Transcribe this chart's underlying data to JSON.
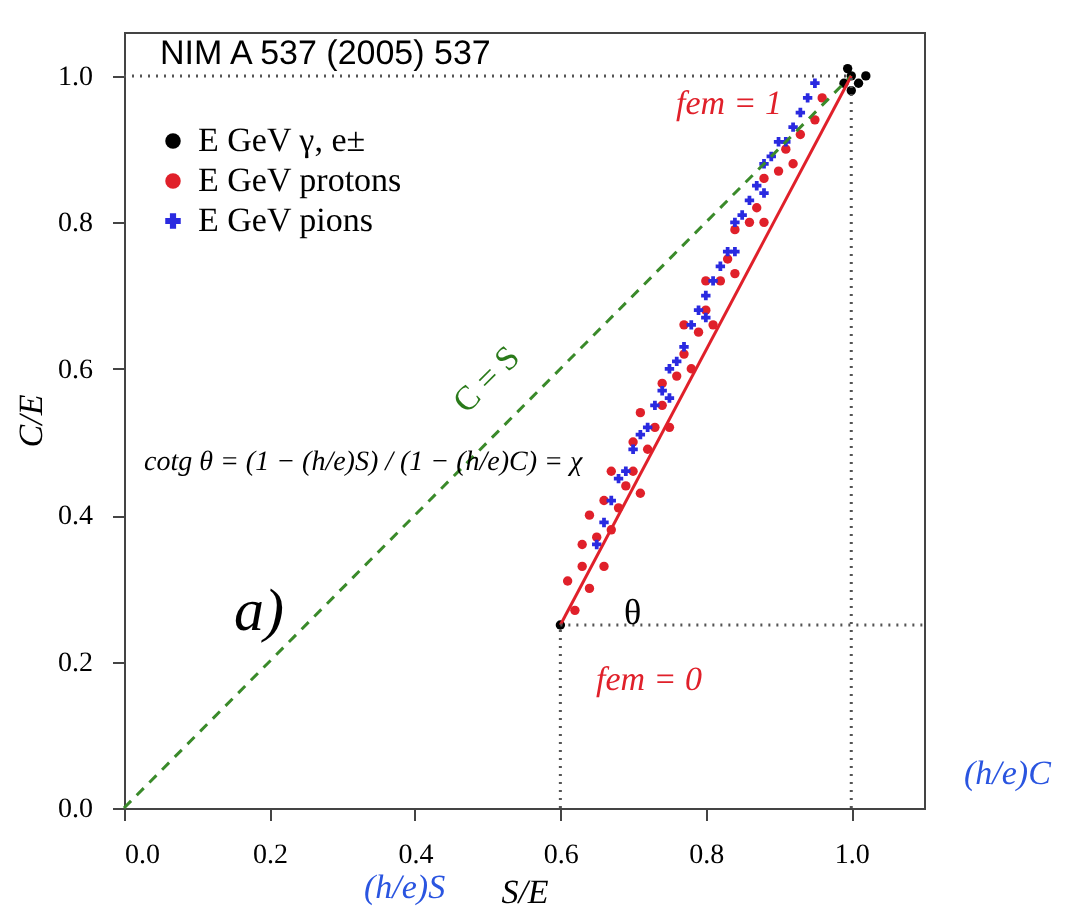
{
  "chart_data": {
    "type": "scatter",
    "xlabel": "S/E",
    "ylabel": "C/E",
    "xlim": [
      0,
      1.1
    ],
    "ylim": [
      0,
      1.06
    ],
    "xticks": [
      {
        "value": 0,
        "label": "0.0"
      },
      0.2,
      0.4,
      0.6,
      0.8,
      {
        "value": 1,
        "label": "1.0"
      }
    ],
    "yticks": [
      {
        "value": 0,
        "label": "0.0"
      },
      0.2,
      0.4,
      0.6,
      0.8,
      {
        "value": 1,
        "label": "1.0"
      }
    ],
    "grid": false,
    "legend": "top left",
    "series": [
      {
        "name": "E GeV γ, e±",
        "color": "#000000",
        "marker": "circle",
        "x": [
          0.99,
          1.0,
          1.01,
          1.02,
          1.0,
          0.995,
          0.6
        ],
        "values": [
          0.99,
          1.0,
          0.99,
          1.0,
          0.98,
          1.01,
          0.25
        ]
      },
      {
        "name": "E GeV protons",
        "color": "#e0202a",
        "marker": "circle",
        "x": [
          0.62,
          0.61,
          0.63,
          0.64,
          0.63,
          0.65,
          0.66,
          0.64,
          0.67,
          0.66,
          0.68,
          0.69,
          0.67,
          0.7,
          0.71,
          0.7,
          0.72,
          0.73,
          0.71,
          0.74,
          0.75,
          0.74,
          0.76,
          0.77,
          0.78,
          0.77,
          0.79,
          0.8,
          0.81,
          0.8,
          0.82,
          0.83,
          0.84,
          0.84,
          0.86,
          0.87,
          0.88,
          0.88,
          0.9,
          0.91,
          0.92,
          0.93,
          0.95,
          0.96
        ],
        "values": [
          0.27,
          0.31,
          0.33,
          0.3,
          0.36,
          0.37,
          0.33,
          0.4,
          0.38,
          0.42,
          0.41,
          0.44,
          0.46,
          0.46,
          0.43,
          0.5,
          0.49,
          0.52,
          0.54,
          0.55,
          0.52,
          0.58,
          0.59,
          0.62,
          0.6,
          0.66,
          0.65,
          0.68,
          0.66,
          0.72,
          0.72,
          0.75,
          0.73,
          0.79,
          0.8,
          0.82,
          0.8,
          0.86,
          0.87,
          0.9,
          0.88,
          0.92,
          0.94,
          0.97
        ]
      },
      {
        "name": "E GeV pions",
        "color": "#2a2ae0",
        "marker": "cross",
        "x": [
          0.65,
          0.66,
          0.67,
          0.68,
          0.69,
          0.7,
          0.71,
          0.72,
          0.73,
          0.74,
          0.75,
          0.75,
          0.76,
          0.77,
          0.78,
          0.79,
          0.8,
          0.8,
          0.81,
          0.82,
          0.83,
          0.84,
          0.84,
          0.85,
          0.86,
          0.87,
          0.88,
          0.88,
          0.89,
          0.9,
          0.91,
          0.92,
          0.93,
          0.94,
          0.95
        ],
        "values": [
          0.36,
          0.39,
          0.42,
          0.45,
          0.46,
          0.49,
          0.51,
          0.52,
          0.55,
          0.57,
          0.56,
          0.6,
          0.61,
          0.63,
          0.66,
          0.68,
          0.67,
          0.7,
          0.72,
          0.74,
          0.76,
          0.76,
          0.8,
          0.81,
          0.83,
          0.85,
          0.84,
          0.88,
          0.89,
          0.91,
          0.91,
          0.93,
          0.95,
          0.97,
          0.99
        ]
      },
      {
        "type": "line",
        "color": "#3a8a2a",
        "line_style": "dashed",
        "x": [
          0,
          1
        ],
        "values": [
          0,
          1
        ]
      },
      {
        "type": "line",
        "color": "#e0202a",
        "line_style": "solid",
        "x": [
          0.6,
          1
        ],
        "values": [
          0.25,
          1
        ]
      },
      {
        "type": "line",
        "color": "#555555",
        "line_style": "dotted",
        "x": [
          0,
          1
        ],
        "values": [
          1,
          1
        ]
      },
      {
        "type": "line",
        "color": "#555555",
        "line_style": "dotted",
        "x": [
          1,
          1
        ],
        "values": [
          0,
          1
        ]
      },
      {
        "type": "line",
        "color": "#555555",
        "line_style": "dotted",
        "x": [
          0.6,
          0.6
        ],
        "values": [
          0,
          0.25
        ]
      },
      {
        "type": "line",
        "color": "#555555",
        "line_style": "dotted",
        "x": [
          0.6,
          1.1
        ],
        "values": [
          0.25,
          0.25
        ]
      }
    ],
    "annotations": [
      "NIM A 537 (2005) 537",
      "a)",
      "cotg θ = (1 − (h/e)S) / (1 − (h/e)C) = χ",
      "θ",
      "(h/e)S",
      "(h/e)C",
      "C = S",
      "fem = 1",
      "fem = 0"
    ]
  }
}
